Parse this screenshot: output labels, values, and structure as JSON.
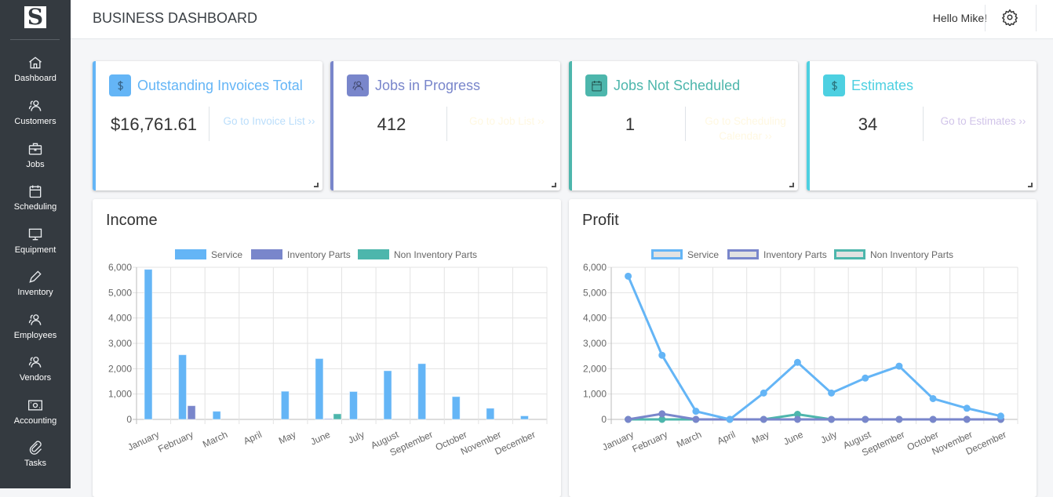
{
  "header": {
    "title": "BUSINESS DASHBOARD",
    "greeting": "Hello Mike!",
    "settings_icon": "gear-icon"
  },
  "sidebar": {
    "logo": "S",
    "items": [
      {
        "label": "Dashboard",
        "icon": "home-icon"
      },
      {
        "label": "Customers",
        "icon": "users-icon"
      },
      {
        "label": "Jobs",
        "icon": "briefcase-icon"
      },
      {
        "label": "Scheduling",
        "icon": "calendar-icon"
      },
      {
        "label": "Equipment",
        "icon": "monitor-icon"
      },
      {
        "label": "Inventory",
        "icon": "pencil-icon"
      },
      {
        "label": "Employees",
        "icon": "users-icon"
      },
      {
        "label": "Vendors",
        "icon": "users-icon"
      },
      {
        "label": "Accounting",
        "icon": "cash-icon"
      },
      {
        "label": "Tasks",
        "icon": "paperclip-icon"
      }
    ]
  },
  "cards": [
    {
      "title": "Outstanding Invoices Total",
      "value": "$16,761.61",
      "link": "Go to Invoice List ››",
      "color": "#64b5f6",
      "link_color": "#bbdefb",
      "icon": "dollar-icon"
    },
    {
      "title": "Jobs in Progress",
      "value": "412",
      "link": "Go to Job List ››",
      "color": "#7986cb",
      "link_color": "#fff8e1",
      "icon": "users-icon"
    },
    {
      "title": "Jobs Not Scheduled",
      "value": "1",
      "link": "Go to Scheduling Calendar ››",
      "color": "#4db6ac",
      "link_color": "#fff8e1",
      "icon": "calendar-icon"
    },
    {
      "title": "Estimates",
      "value": "34",
      "link": "Go to Estimates ››",
      "color": "#4dd0e1",
      "link_color": "#d1c4e9",
      "icon": "dollar-icon"
    }
  ],
  "chart_data": [
    {
      "type": "bar",
      "title": "Income",
      "legend_position": "top",
      "grid": true,
      "ylim": [
        0,
        6000
      ],
      "yticks": [
        "6,000",
        "5,000",
        "4,000",
        "3,000",
        "2,000",
        "1,000",
        "0"
      ],
      "categories": [
        "January",
        "February",
        "March",
        "April",
        "May",
        "June",
        "July",
        "August",
        "September",
        "October",
        "November",
        "December"
      ],
      "series": [
        {
          "name": "Service",
          "color": "#64b5f6",
          "values": [
            5920,
            2550,
            320,
            0,
            1110,
            2400,
            1100,
            1920,
            2200,
            900,
            440,
            140
          ]
        },
        {
          "name": "Inventory Parts",
          "color": "#7986cb",
          "values": [
            0,
            540,
            0,
            0,
            0,
            30,
            0,
            0,
            0,
            0,
            0,
            0
          ]
        },
        {
          "name": "Non Inventory Parts",
          "color": "#4db6ac",
          "values": [
            0,
            0,
            0,
            0,
            0,
            220,
            0,
            0,
            0,
            0,
            0,
            0
          ]
        }
      ]
    },
    {
      "type": "line",
      "title": "Profit",
      "legend_position": "top",
      "grid": true,
      "ylim": [
        0,
        6000
      ],
      "yticks": [
        "6,000",
        "5,000",
        "4,000",
        "3,000",
        "2,000",
        "1,000",
        "0"
      ],
      "categories": [
        "January",
        "February",
        "March",
        "April",
        "May",
        "June",
        "July",
        "August",
        "September",
        "October",
        "November",
        "December"
      ],
      "series": [
        {
          "name": "Service",
          "color": "#64b5f6",
          "values": [
            5650,
            2530,
            320,
            0,
            1040,
            2250,
            1040,
            1630,
            2100,
            820,
            440,
            130
          ]
        },
        {
          "name": "Inventory Parts",
          "color": "#7986cb",
          "values": [
            0,
            220,
            0,
            0,
            0,
            0,
            0,
            0,
            0,
            0,
            0,
            0
          ]
        },
        {
          "name": "Non Inventory Parts",
          "color": "#4db6ac",
          "values": [
            0,
            0,
            0,
            0,
            0,
            200,
            0,
            0,
            0,
            0,
            0,
            0
          ]
        }
      ]
    }
  ]
}
